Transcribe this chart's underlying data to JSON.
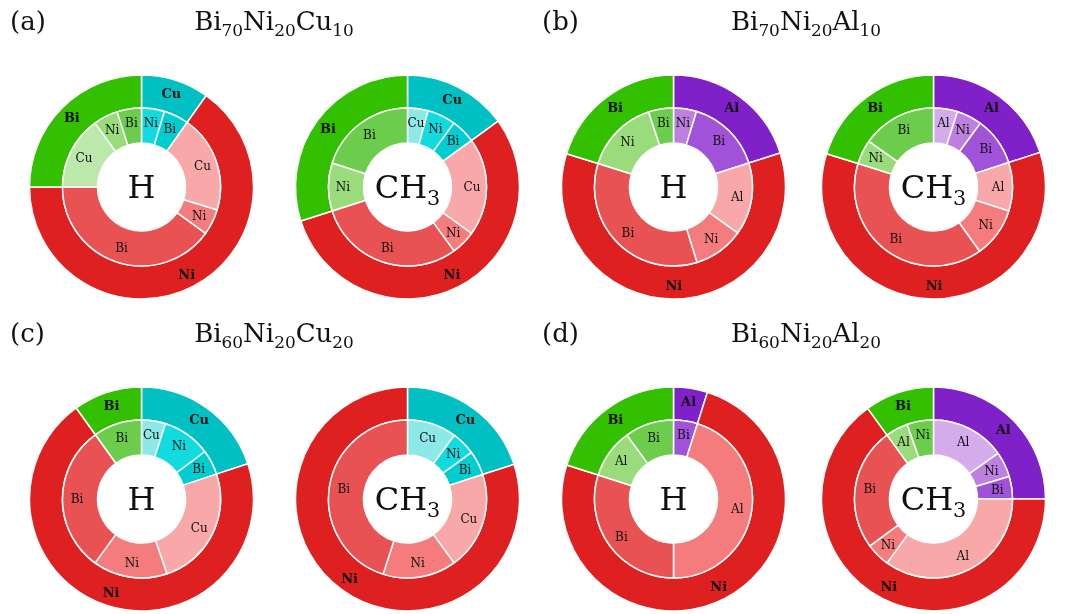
{
  "chart_data": [
    {
      "type": "donut",
      "title": "Bi$_{70}$Ni$_{20}$Cu$_{10}$",
      "annotations": [
        "(a)"
      ],
      "categories": [
        "Cu",
        "Ni",
        "Bi"
      ],
      "values": [
        9.8,
        65.2,
        25
      ],
      "colors": [
        "#00c0c4",
        "#df2020",
        "#33c000"
      ]
    },
    {
      "type": "donut",
      "annotations": [
        "H"
      ],
      "categories": [
        "Ni",
        "Bi",
        "Cu",
        "Ni",
        "Bi",
        "Cu",
        "Ni",
        "Bi"
      ],
      "values": [
        4.7,
        5.1,
        19.9,
        5.3,
        40,
        15,
        5,
        5
      ],
      "colors": [
        "#12dbdf",
        "#00cdd0",
        "#f8a8a8",
        "#f47c7c",
        "#e85252",
        "#bce8ac",
        "#9adc7c",
        "#6ccc4c"
      ]
    },
    {
      "type": "donut",
      "categories": [
        "Cu",
        "Ni",
        "Bi"
      ],
      "values": [
        15,
        55.1,
        29.9
      ],
      "colors": [
        "#00c0c4",
        "#df2020",
        "#33c000"
      ]
    },
    {
      "type": "donut",
      "annotations": [
        "CH$_{3}$"
      ],
      "categories": [
        "Cu",
        "Ni",
        "Bi",
        "Cu",
        "Ni",
        "Bi",
        "Ni",
        "Bi"
      ],
      "values": [
        4.2,
        5.8,
        5,
        20,
        5,
        30.1,
        9.8,
        20.1
      ],
      "colors": [
        "#8de8e8",
        "#12dbdf",
        "#00cdd0",
        "#f8a8a8",
        "#f47c7c",
        "#e85252",
        "#9adc7c",
        "#6ccc4c"
      ]
    },
    {
      "type": "donut",
      "title": "Bi$_{70}$Ni$_{20}$Al$_{10}$",
      "annotations": [
        "(b)"
      ],
      "categories": [
        "Al",
        "Ni",
        "Bi"
      ],
      "values": [
        20.1,
        59.7,
        20.2
      ],
      "colors": [
        "#8020c8",
        "#df2020",
        "#33c000"
      ]
    },
    {
      "type": "donut",
      "annotations": [
        "H"
      ],
      "categories": [
        "Ni",
        "Bi",
        "Al",
        "Ni",
        "Bi",
        "Ni",
        "Bi"
      ],
      "values": [
        4.7,
        15.4,
        14.8,
        10.3,
        34.6,
        15.1,
        5.1
      ],
      "colors": [
        "#bd80e0",
        "#a052d8",
        "#f8a8a8",
        "#f47c7c",
        "#e85252",
        "#9adc7c",
        "#6ccc4c"
      ]
    },
    {
      "type": "donut",
      "categories": [
        "Al",
        "Ni",
        "Bi"
      ],
      "values": [
        20,
        59.8,
        20.2
      ],
      "colors": [
        "#8020c8",
        "#df2020",
        "#33c000"
      ]
    },
    {
      "type": "donut",
      "annotations": [
        "CH$_{3}$"
      ],
      "categories": [
        "Al",
        "Ni",
        "Bi",
        "Al",
        "Ni",
        "Bi",
        "Ni",
        "Bi"
      ],
      "values": [
        4.9,
        5.2,
        9.9,
        9.9,
        10.2,
        39.7,
        5,
        15.2
      ],
      "colors": [
        "#d4acec",
        "#bd80e0",
        "#a052d8",
        "#f8a8a8",
        "#f47c7c",
        "#e85252",
        "#9adc7c",
        "#6ccc4c"
      ]
    },
    {
      "type": "donut",
      "title": "Bi$_{60}$Ni$_{20}$Cu$_{20}$",
      "annotations": [
        "(c)"
      ],
      "categories": [
        "Cu",
        "Ni",
        "Bi"
      ],
      "values": [
        19.9,
        70.2,
        9.9
      ],
      "colors": [
        "#00c0c4",
        "#df2020",
        "#33c000"
      ]
    },
    {
      "type": "donut",
      "annotations": [
        "H"
      ],
      "categories": [
        "Cu",
        "Ni",
        "Bi",
        "Cu",
        "Ni",
        "Bi",
        "Bi"
      ],
      "values": [
        4.9,
        9.9,
        5.1,
        24.9,
        15.2,
        30.1,
        9.9
      ],
      "colors": [
        "#8de8e8",
        "#12dbdf",
        "#00cdd0",
        "#f8a8a8",
        "#f47c7c",
        "#e85252",
        "#6ccc4c"
      ]
    },
    {
      "type": "donut",
      "categories": [
        "Cu",
        "Ni"
      ],
      "values": [
        20,
        80
      ],
      "colors": [
        "#00c0c4",
        "#df2020"
      ]
    },
    {
      "type": "donut",
      "annotations": [
        "CH$_{3}$"
      ],
      "categories": [
        "Cu",
        "Ni",
        "Bi",
        "Cu",
        "Ni",
        "Bi"
      ],
      "values": [
        10.1,
        4.9,
        5,
        20,
        15,
        45
      ],
      "colors": [
        "#8de8e8",
        "#12dbdf",
        "#00cdd0",
        "#f8a8a8",
        "#f47c7c",
        "#e85252"
      ]
    },
    {
      "type": "donut",
      "title": "Bi$_{60}$Ni$_{20}$Al$_{20}$",
      "annotations": [
        "(d)"
      ],
      "categories": [
        "Al",
        "Ni",
        "Bi"
      ],
      "values": [
        4.9,
        75,
        20.1
      ],
      "colors": [
        "#8020c8",
        "#df2020",
        "#33c000"
      ]
    },
    {
      "type": "donut",
      "annotations": [
        "H"
      ],
      "categories": [
        "Bi",
        "Al",
        "Bi",
        "Al",
        "Bi"
      ],
      "values": [
        4.9,
        45.1,
        29.9,
        10.1,
        10
      ],
      "colors": [
        "#a052d8",
        "#f47c7c",
        "#e85252",
        "#9adc7c",
        "#6ccc4c"
      ]
    },
    {
      "type": "donut",
      "categories": [
        "Al",
        "Ni",
        "Bi"
      ],
      "values": [
        25,
        65,
        10
      ],
      "colors": [
        "#8020c8",
        "#df2020",
        "#33c000"
      ]
    },
    {
      "type": "donut",
      "annotations": [
        "CH$_{3}$"
      ],
      "categories": [
        "Al",
        "Ni",
        "Bi",
        "Al",
        "Ni",
        "Bi",
        "Al",
        "Ni"
      ],
      "values": [
        15.2,
        5.2,
        4.6,
        35,
        4.9,
        25.1,
        4.6,
        5.4
      ],
      "colors": [
        "#d4acec",
        "#bd80e0",
        "#a052d8",
        "#f8a8a8",
        "#f47c7c",
        "#e85252",
        "#9adc7c",
        "#6ccc4c"
      ]
    }
  ]
}
